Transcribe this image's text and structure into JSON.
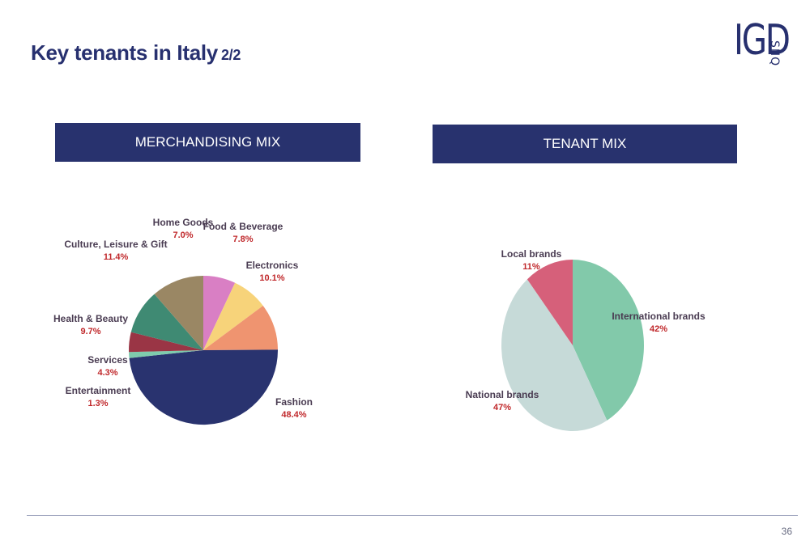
{
  "slide": {
    "title": "Key tenants in Italy",
    "title_suffix": "2/2",
    "page_number": "36"
  },
  "logo": {
    "main": "IGD",
    "sub": "SIIQ"
  },
  "colors": {
    "navy": "#27306f",
    "value_red": "#c0282b",
    "divider": "#9aa0bb"
  },
  "chart_data": [
    {
      "type": "pie",
      "title": "MERCHANDISING MIX",
      "slices": [
        {
          "label": "Home Goods",
          "value": 7.0,
          "display": "7.0%",
          "color": "#d97fc4"
        },
        {
          "label": "Food & Beverage",
          "value": 7.8,
          "display": "7.8%",
          "color": "#f7d37a"
        },
        {
          "label": "Electronics",
          "value": 10.1,
          "display": "10.1%",
          "color": "#ef9470"
        },
        {
          "label": "Fashion",
          "value": 48.4,
          "display": "48.4%",
          "color": "#29336f"
        },
        {
          "label": "Entertainment",
          "value": 1.3,
          "display": "1.3%",
          "color": "#7ecbad"
        },
        {
          "label": "Services",
          "value": 4.3,
          "display": "4.3%",
          "color": "#9a3545"
        },
        {
          "label": "Health & Beauty",
          "value": 9.7,
          "display": "9.7%",
          "color": "#3f8a73"
        },
        {
          "label": "Culture, Leisure & Gift",
          "value": 11.4,
          "display": "11.4%",
          "color": "#9a8764"
        }
      ]
    },
    {
      "type": "pie",
      "title": "TENANT MIX",
      "slices": [
        {
          "label": "International brands",
          "value": 42,
          "display": "42%",
          "color": "#82c9aa"
        },
        {
          "label": "National brands",
          "value": 47,
          "display": "47%",
          "color": "#c6dad8"
        },
        {
          "label": "Local brands",
          "value": 11,
          "display": "11%",
          "color": "#d6607a"
        }
      ]
    }
  ]
}
